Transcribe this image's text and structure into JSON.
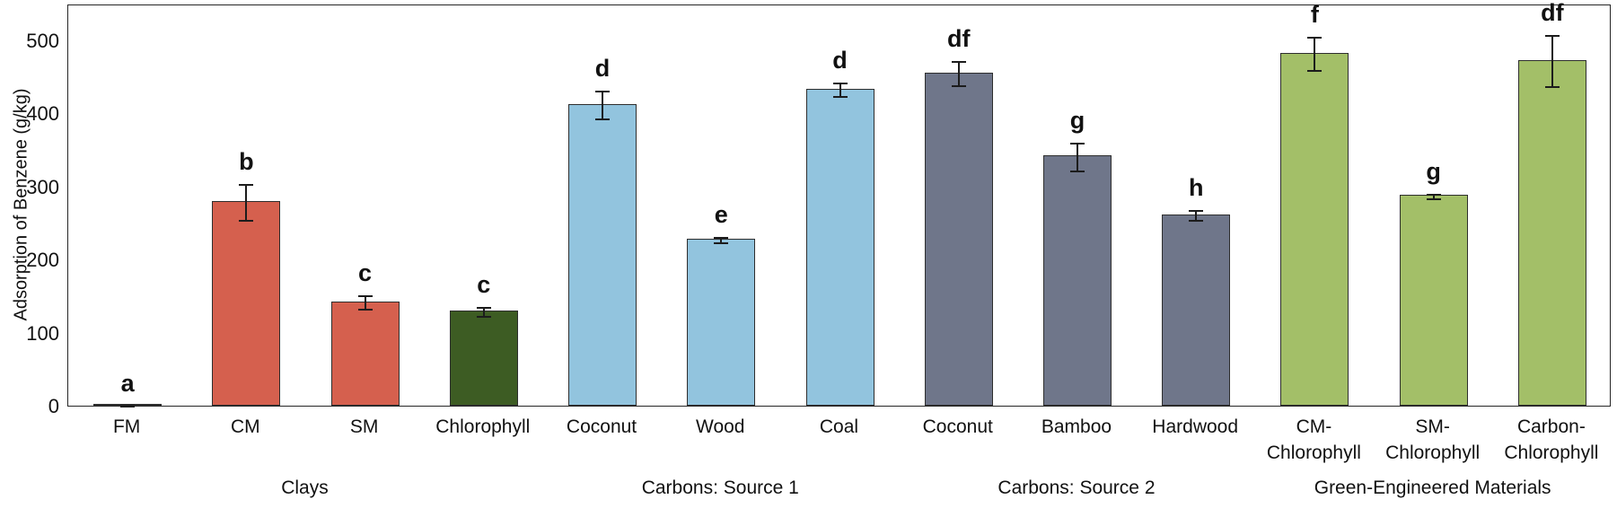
{
  "chart_data": {
    "type": "bar",
    "title": "",
    "xlabel": "",
    "ylabel": "Adsorption of Benzene (g/kg)",
    "ylim": [
      0,
      550
    ],
    "yticks": [
      0,
      100,
      200,
      300,
      400,
      500
    ],
    "grid": false,
    "legend": "none",
    "bar_groups": [
      {
        "label": "Clays",
        "start": 0,
        "end": 3
      },
      {
        "label": "Carbons: Source 1",
        "start": 4,
        "end": 6
      },
      {
        "label": "Carbons: Source 2",
        "start": 7,
        "end": 9
      },
      {
        "label": "Green-Engineered Materials",
        "start": 10,
        "end": 12
      }
    ],
    "bars": [
      {
        "label": "FM",
        "label_lines": [
          "FM"
        ],
        "value": 2,
        "error": 1,
        "sig_letter": "a",
        "color": "#D5604E",
        "group": "Clays"
      },
      {
        "label": "CM",
        "label_lines": [
          "CM"
        ],
        "value": 280,
        "error": 26,
        "sig_letter": "b",
        "color": "#D5604E",
        "group": "Clays"
      },
      {
        "label": "SM",
        "label_lines": [
          "SM"
        ],
        "value": 143,
        "error": 11,
        "sig_letter": "c",
        "color": "#D5604E",
        "group": "Clays"
      },
      {
        "label": "Chlorophyll",
        "label_lines": [
          "Chlorophyll"
        ],
        "value": 130,
        "error": 7,
        "sig_letter": "c",
        "color": "#3D5C23",
        "group": "Clays"
      },
      {
        "label": "Coconut",
        "label_lines": [
          "Coconut"
        ],
        "value": 413,
        "error": 20,
        "sig_letter": "d",
        "color": "#92C4DE",
        "group": "Carbons: Source 1"
      },
      {
        "label": "Wood",
        "label_lines": [
          "Wood"
        ],
        "value": 228,
        "error": 5,
        "sig_letter": "e",
        "color": "#92C4DE",
        "group": "Carbons: Source 1"
      },
      {
        "label": "Coal",
        "label_lines": [
          "Coal"
        ],
        "value": 434,
        "error": 10,
        "sig_letter": "d",
        "color": "#92C4DE",
        "group": "Carbons: Source 1"
      },
      {
        "label": "Coconut",
        "label_lines": [
          "Coconut"
        ],
        "value": 456,
        "error": 18,
        "sig_letter": "df",
        "color": "#6F768A",
        "group": "Carbons: Source 2"
      },
      {
        "label": "Bamboo",
        "label_lines": [
          "Bamboo"
        ],
        "value": 342,
        "error": 20,
        "sig_letter": "g",
        "color": "#6F768A",
        "group": "Carbons: Source 2"
      },
      {
        "label": "Hardwood",
        "label_lines": [
          "Hardwood"
        ],
        "value": 262,
        "error": 8,
        "sig_letter": "h",
        "color": "#6F768A",
        "group": "Carbons: Source 2"
      },
      {
        "label": "CM-Chlorophyll",
        "label_lines": [
          "CM-",
          "Chlorophyll"
        ],
        "value": 483,
        "error": 24,
        "sig_letter": "f",
        "color": "#A3BF68",
        "group": "Green-Engineered Materials"
      },
      {
        "label": "SM-Chlorophyll",
        "label_lines": [
          "SM-",
          "Chlorophyll"
        ],
        "value": 288,
        "error": 4,
        "sig_letter": "g",
        "color": "#A3BF68",
        "group": "Green-Engineered Materials"
      },
      {
        "label": "Carbon-Chlorophyll",
        "label_lines": [
          "Carbon-",
          "Chlorophyll"
        ],
        "value": 473,
        "error": 36,
        "sig_letter": "df",
        "color": "#A3BF68",
        "group": "Green-Engineered Materials"
      }
    ],
    "colors": {
      "clays": "#D5604E",
      "chlorophyll": "#3D5C23",
      "carbons_source_1": "#92C4DE",
      "carbons_source_2": "#6F768A",
      "green_engineered": "#A3BF68",
      "bar_border": "#2E2E2E",
      "axis": "#262626",
      "text": "#111111"
    }
  }
}
